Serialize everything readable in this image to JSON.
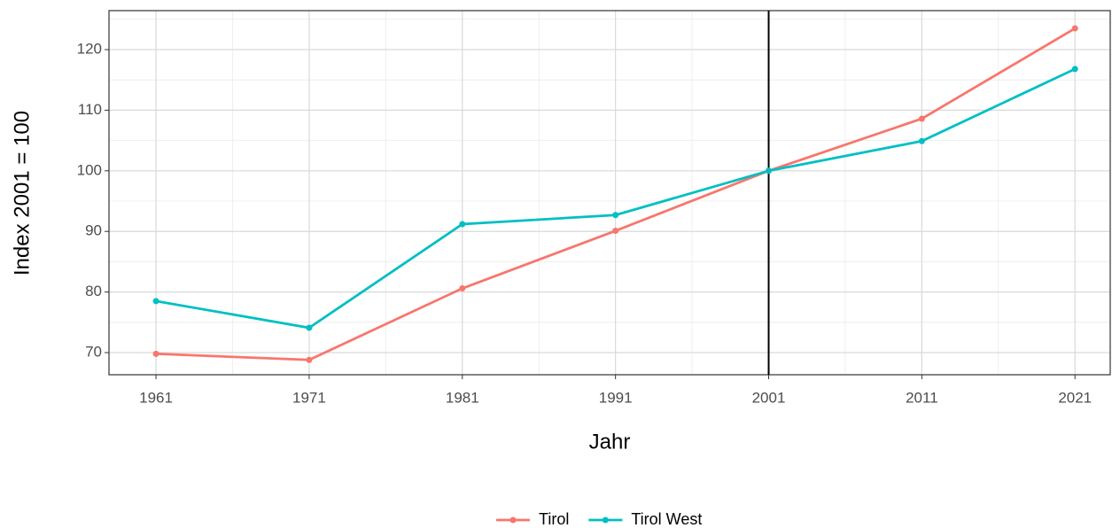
{
  "chart_data": {
    "type": "line",
    "x_label": "Jahr",
    "y_label": "Index 2001 = 100",
    "x": [
      1961,
      1971,
      1981,
      1991,
      2001,
      2011,
      2021
    ],
    "series": [
      {
        "name": "Tirol",
        "color": "#F8766D",
        "values": [
          69.8,
          68.8,
          80.6,
          90.1,
          100,
          108.6,
          123.5
        ]
      },
      {
        "name": "Tirol West",
        "color": "#00BFC4",
        "values": [
          78.5,
          74.1,
          91.2,
          92.7,
          100,
          104.9,
          116.8
        ]
      }
    ],
    "xlim": [
      1957.93,
      2023.3
    ],
    "xticks": [
      1961,
      1971,
      1981,
      1991,
      2001,
      2011,
      2021
    ],
    "x_minor_ticks": [
      1966,
      1976,
      1986,
      1996,
      2006,
      2016
    ],
    "ylim": [
      66.35,
      126.43
    ],
    "yticks": [
      70,
      80,
      90,
      100,
      110,
      120
    ],
    "y_minor_ticks": [
      75,
      85,
      95,
      105,
      115,
      125
    ],
    "vline": 2001,
    "grid": true,
    "legend": "bottom"
  }
}
